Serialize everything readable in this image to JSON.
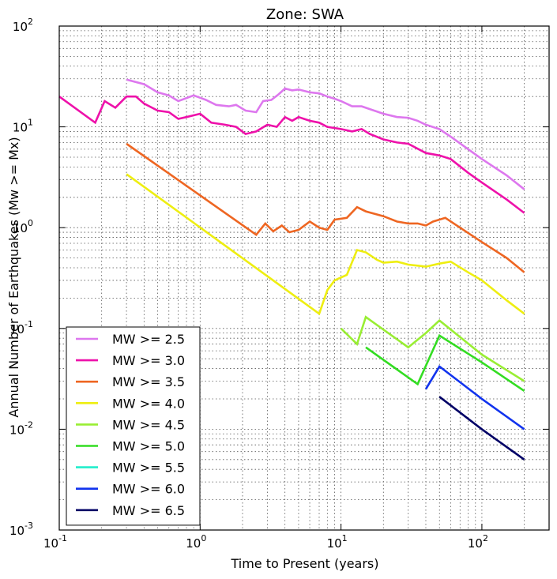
{
  "chart_data": {
    "type": "line",
    "title": "Zone: SWA",
    "xlabel": "Time to Present (years)",
    "ylabel": "Annual Number of Earthquakes (Mw >= Mx)",
    "xscale": "log",
    "yscale": "log",
    "xlim": [
      0.1,
      300
    ],
    "ylim": [
      0.001,
      100
    ],
    "grid": true,
    "legend_position": "lower-left",
    "x_ticks": [
      {
        "value": 0.1,
        "base": "10",
        "exp": "-1"
      },
      {
        "value": 1,
        "base": "10",
        "exp": "0"
      },
      {
        "value": 10,
        "base": "10",
        "exp": "1"
      },
      {
        "value": 100,
        "base": "10",
        "exp": "2"
      }
    ],
    "y_ticks": [
      {
        "value": 0.001,
        "base": "10",
        "exp": "-3"
      },
      {
        "value": 0.01,
        "base": "10",
        "exp": "-2"
      },
      {
        "value": 0.1,
        "base": "10",
        "exp": "-1"
      },
      {
        "value": 1,
        "base": "10",
        "exp": "0"
      },
      {
        "value": 10,
        "base": "10",
        "exp": "1"
      },
      {
        "value": 100,
        "base": "10",
        "exp": "2"
      }
    ],
    "series": [
      {
        "name": "MW >= 2.5",
        "color": "#dd77ee",
        "points": [
          [
            0.3,
            29.5
          ],
          [
            0.4,
            26.5
          ],
          [
            0.5,
            22
          ],
          [
            0.6,
            20.5
          ],
          [
            0.7,
            18
          ],
          [
            0.9,
            20.5
          ],
          [
            1.1,
            18.5
          ],
          [
            1.3,
            16.5
          ],
          [
            1.6,
            16
          ],
          [
            1.8,
            16.5
          ],
          [
            2.1,
            14.5
          ],
          [
            2.5,
            14
          ],
          [
            2.8,
            18
          ],
          [
            3.2,
            18.5
          ],
          [
            3.6,
            21
          ],
          [
            4,
            24
          ],
          [
            4.5,
            23
          ],
          [
            5,
            23.5
          ],
          [
            6,
            22
          ],
          [
            7,
            21.5
          ],
          [
            8,
            20
          ],
          [
            9,
            19
          ],
          [
            10,
            18
          ],
          [
            12,
            16
          ],
          [
            14,
            16
          ],
          [
            16,
            15
          ],
          [
            20,
            13.5
          ],
          [
            25,
            12.5
          ],
          [
            30,
            12.3
          ],
          [
            35,
            11.5
          ],
          [
            40,
            10.5
          ],
          [
            50,
            9.5
          ],
          [
            60,
            8
          ],
          [
            80,
            6
          ],
          [
            100,
            4.8
          ],
          [
            150,
            3.3
          ],
          [
            200,
            2.4
          ]
        ]
      },
      {
        "name": "MW >= 3.0",
        "color": "#ee11aa",
        "points": [
          [
            0.1,
            20
          ],
          [
            0.18,
            11
          ],
          [
            0.21,
            18
          ],
          [
            0.25,
            15.5
          ],
          [
            0.3,
            20
          ],
          [
            0.35,
            20
          ],
          [
            0.4,
            17
          ],
          [
            0.5,
            14.5
          ],
          [
            0.6,
            14
          ],
          [
            0.7,
            12
          ],
          [
            0.8,
            12.5
          ],
          [
            1,
            13.5
          ],
          [
            1.2,
            11
          ],
          [
            1.5,
            10.5
          ],
          [
            1.8,
            10
          ],
          [
            2.1,
            8.5
          ],
          [
            2.5,
            9
          ],
          [
            3,
            10.5
          ],
          [
            3.5,
            10
          ],
          [
            4,
            12.5
          ],
          [
            4.5,
            11.5
          ],
          [
            5,
            12.5
          ],
          [
            6,
            11.5
          ],
          [
            7,
            11
          ],
          [
            8,
            10
          ],
          [
            10,
            9.5
          ],
          [
            12,
            9
          ],
          [
            14,
            9.5
          ],
          [
            16,
            8.5
          ],
          [
            20,
            7.5
          ],
          [
            25,
            7
          ],
          [
            30,
            6.8
          ],
          [
            40,
            5.5
          ],
          [
            50,
            5.2
          ],
          [
            60,
            4.8
          ],
          [
            80,
            3.5
          ],
          [
            100,
            2.8
          ],
          [
            150,
            1.9
          ],
          [
            200,
            1.4
          ]
        ]
      },
      {
        "name": "MW >= 3.5",
        "color": "#ee6622",
        "points": [
          [
            0.3,
            6.8
          ],
          [
            2.5,
            0.85
          ],
          [
            2.9,
            1.1
          ],
          [
            3.3,
            0.92
          ],
          [
            3.8,
            1.05
          ],
          [
            4.3,
            0.9
          ],
          [
            5,
            0.95
          ],
          [
            6,
            1.15
          ],
          [
            7,
            1
          ],
          [
            8,
            0.95
          ],
          [
            9,
            1.2
          ],
          [
            11,
            1.25
          ],
          [
            13,
            1.6
          ],
          [
            15,
            1.45
          ],
          [
            20,
            1.3
          ],
          [
            25,
            1.15
          ],
          [
            30,
            1.1
          ],
          [
            35,
            1.1
          ],
          [
            40,
            1.05
          ],
          [
            45,
            1.15
          ],
          [
            55,
            1.25
          ],
          [
            70,
            1
          ],
          [
            100,
            0.72
          ],
          [
            150,
            0.5
          ],
          [
            200,
            0.36
          ]
        ]
      },
      {
        "name": "MW >= 4.0",
        "color": "#eeee11",
        "points": [
          [
            0.3,
            3.4
          ],
          [
            7,
            0.14
          ],
          [
            8,
            0.24
          ],
          [
            9,
            0.3
          ],
          [
            11,
            0.34
          ],
          [
            13,
            0.6
          ],
          [
            15,
            0.57
          ],
          [
            18,
            0.48
          ],
          [
            20,
            0.45
          ],
          [
            25,
            0.46
          ],
          [
            30,
            0.43
          ],
          [
            35,
            0.42
          ],
          [
            40,
            0.41
          ],
          [
            50,
            0.44
          ],
          [
            60,
            0.46
          ],
          [
            80,
            0.36
          ],
          [
            100,
            0.3
          ],
          [
            150,
            0.19
          ],
          [
            200,
            0.14
          ]
        ]
      },
      {
        "name": "MW >= 4.5",
        "color": "#99ee33",
        "points": [
          [
            10,
            0.1
          ],
          [
            13,
            0.07
          ],
          [
            15,
            0.13
          ],
          [
            30,
            0.065
          ],
          [
            40,
            0.09
          ],
          [
            50,
            0.12
          ],
          [
            100,
            0.055
          ],
          [
            200,
            0.03
          ]
        ]
      },
      {
        "name": "MW >= 5.0",
        "color": "#33dd22",
        "points": [
          [
            15,
            0.065
          ],
          [
            35,
            0.028
          ],
          [
            50,
            0.085
          ],
          [
            100,
            0.046
          ],
          [
            200,
            0.024
          ]
        ]
      },
      {
        "name": "MW >= 5.5",
        "color": "#22eecc",
        "points": []
      },
      {
        "name": "MW >= 6.0",
        "color": "#1133ee",
        "points": [
          [
            40,
            0.025
          ],
          [
            50,
            0.042
          ],
          [
            100,
            0.02
          ],
          [
            200,
            0.01
          ]
        ]
      },
      {
        "name": "MW >= 6.5",
        "color": "#000066",
        "points": [
          [
            50,
            0.021
          ],
          [
            100,
            0.01
          ],
          [
            200,
            0.005
          ]
        ]
      }
    ]
  }
}
